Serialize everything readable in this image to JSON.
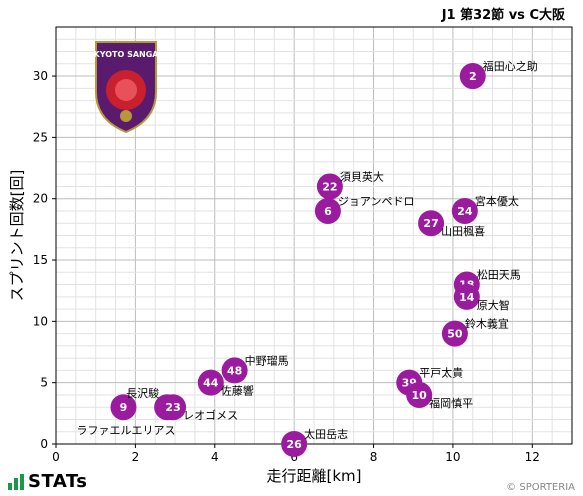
{
  "header": {
    "match_title": "J1 第32節 vs C大阪"
  },
  "footer": {
    "brand": "STATs",
    "credit": "© SPORTERIA"
  },
  "badge": {
    "text": "KYOTO SANGA"
  },
  "colors": {
    "point": "#9b1b9e",
    "point_text": "#ffffff",
    "grid_major": "#bdbdbd",
    "grid_minor": "#e2e2e2"
  },
  "chart_data": {
    "type": "scatter",
    "title": "",
    "xlabel": "走行距離[km]",
    "ylabel": "スプリント回数[回]",
    "xlim": [
      0,
      13
    ],
    "ylim": [
      0,
      34
    ],
    "xticks": [
      0,
      2,
      4,
      6,
      8,
      10,
      12
    ],
    "yticks": [
      0,
      5,
      10,
      15,
      20,
      25,
      30
    ],
    "grid": true,
    "points": [
      {
        "number": "2",
        "name": "福田心之助",
        "x": 10.5,
        "y": 30,
        "label_pos": "right-up"
      },
      {
        "number": "22",
        "name": "須貝英大",
        "x": 6.9,
        "y": 21,
        "label_pos": "right-up"
      },
      {
        "number": "6",
        "name": "ジョアンペドロ",
        "x": 6.85,
        "y": 19,
        "label_pos": "right-up"
      },
      {
        "number": "24",
        "name": "宮本優太",
        "x": 10.3,
        "y": 19,
        "label_pos": "right-up"
      },
      {
        "number": "27",
        "name": "山田楓喜",
        "x": 9.45,
        "y": 18,
        "label_pos": "right-down"
      },
      {
        "number": "18",
        "name": "松田天馬",
        "x": 10.35,
        "y": 13,
        "label_pos": "right-up"
      },
      {
        "number": "14",
        "name": "原大智",
        "x": 10.35,
        "y": 12,
        "label_pos": "right-down"
      },
      {
        "number": "50",
        "name": "鈴木義宜",
        "x": 10.05,
        "y": 9,
        "label_pos": "right-up"
      },
      {
        "number": "48",
        "name": "中野瑠馬",
        "x": 4.5,
        "y": 6,
        "label_pos": "right-up"
      },
      {
        "number": "44",
        "name": "佐藤響",
        "x": 3.9,
        "y": 5,
        "label_pos": "right-down"
      },
      {
        "number": "39",
        "name": "平戸太貴",
        "x": 8.9,
        "y": 5,
        "label_pos": "right-up"
      },
      {
        "number": "10",
        "name": "福岡慎平",
        "x": 9.15,
        "y": 4,
        "label_pos": "right-down"
      },
      {
        "number": "9",
        "name": "ラファエルエリアス",
        "x": 1.7,
        "y": 3,
        "label_pos": "below-left"
      },
      {
        "number": "15",
        "name": "長沢駿",
        "x": 2.8,
        "y": 3,
        "label_pos": "above-left"
      },
      {
        "number": "23",
        "name": "レオゴメス",
        "x": 2.95,
        "y": 3,
        "label_pos": "right-down"
      },
      {
        "number": "26",
        "name": "太田岳志",
        "x": 6.0,
        "y": 0,
        "label_pos": "right-up"
      }
    ]
  }
}
